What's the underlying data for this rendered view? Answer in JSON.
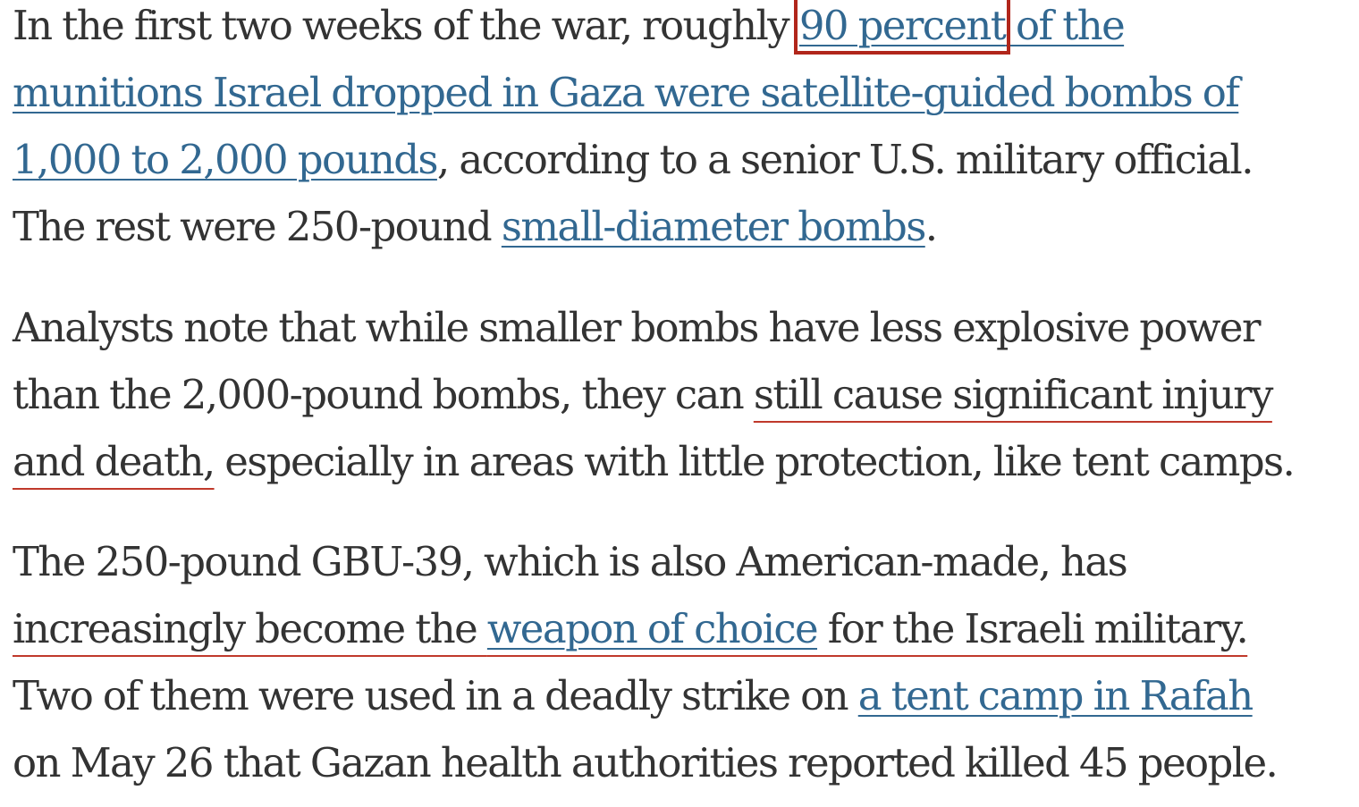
{
  "p1": {
    "l1_a": "In the first two weeks of the war, roughly ",
    "link_boxed": "90 percent",
    "l1_b": " of the",
    "l2": "munitions Israel dropped in Gaza were satellite-guided bombs of",
    "l3_link": "1,000 to 2,000 pounds",
    "l3_b": ", according to a senior U.S. military official.",
    "l4_a": "The rest were 250-pound ",
    "l4_link": "small-diameter bombs",
    "l4_b": "."
  },
  "p2": {
    "l1": "Analysts note that while smaller bombs have less explosive power",
    "l2_a": "than the 2,000-pound bombs, they can ",
    "l2_marked": "still cause significant injury",
    "l3_marked": "and death,",
    "l3_b": " especially in areas with little protection, like tent camps."
  },
  "p3": {
    "l1": "The 250-pound GBU-39, which is also American-made, has",
    "l2_a": "increasingly become the ",
    "l2_link": "weapon of choice",
    "l2_b": " for the Israeli military.",
    "l3_a": "Two of them were used in a deadly strike on ",
    "l3_link": "a tent camp in Rafah",
    "l4": "on May 26 that Gazan health authorities reported killed 45 people."
  },
  "colors": {
    "text": "#333333",
    "link": "#326891",
    "annotation": "#b1261b"
  }
}
